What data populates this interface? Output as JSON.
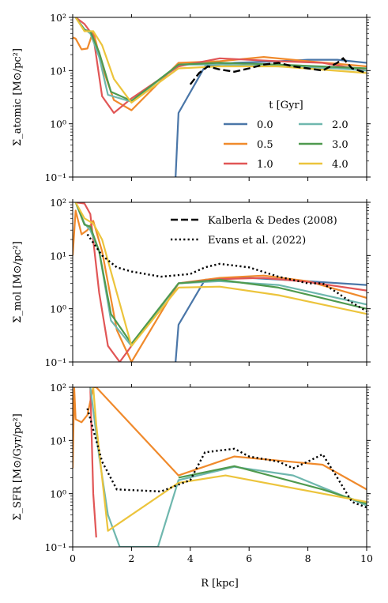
{
  "chart_data": [
    {
      "type": "line",
      "id": "atomic",
      "ylabel": "Σ_atomic [M⊙/pc²]",
      "xlabel": "",
      "xlim": [
        0,
        10
      ],
      "ylim": [
        0.1,
        100
      ],
      "yscale": "log",
      "xticks": [
        "0",
        "2",
        "4",
        "6",
        "8",
        "10"
      ],
      "yticks": [
        "10⁻¹",
        "10⁰",
        "10¹",
        "10²"
      ],
      "legend": {
        "title": "t [Gyr]",
        "placement": "center-right",
        "columns": 2
      },
      "series": [
        {
          "name": "0.0",
          "color": "#4a76a8",
          "x": [
            3.5,
            3.6,
            4.5,
            5.5,
            7.0,
            8.0,
            9.0,
            10.0
          ],
          "y": [
            0.1,
            1.6,
            12,
            14,
            15,
            16,
            16,
            14
          ]
        },
        {
          "name": "0.5",
          "color": "#f08a2c",
          "x": [
            0,
            0.1,
            0.3,
            0.5,
            0.7,
            1.0,
            1.4,
            2.0,
            3.6,
            5.0,
            6.5,
            8.0,
            10.0
          ],
          "y": [
            42,
            40,
            25,
            26,
            55,
            12,
            2.8,
            1.8,
            14,
            15,
            18,
            15,
            12
          ]
        },
        {
          "name": "1.0",
          "color": "#e15656",
          "x": [
            0.1,
            0.4,
            0.7,
            1.0,
            1.4,
            2.0,
            3.6,
            5.0,
            7.0,
            8.5,
            10.0
          ],
          "y": [
            100,
            75,
            45,
            3.3,
            1.6,
            3.0,
            12,
            17,
            15,
            14,
            10
          ]
        },
        {
          "name": "2.0",
          "color": "#6fb7ae",
          "x": [
            0.1,
            0.4,
            0.6,
            0.9,
            1.2,
            2.0,
            3.6,
            5.0,
            7.0,
            9.0,
            10.0
          ],
          "y": [
            100,
            60,
            50,
            18,
            3.5,
            2.6,
            13,
            13,
            12,
            11,
            10
          ]
        },
        {
          "name": "3.0",
          "color": "#4f9a4f",
          "x": [
            0.1,
            0.4,
            0.6,
            0.9,
            1.3,
            2.0,
            3.6,
            5.0,
            7.0,
            10.0
          ],
          "y": [
            100,
            58,
            55,
            22,
            4.0,
            2.7,
            13,
            14,
            13,
            11
          ]
        },
        {
          "name": "4.0",
          "color": "#ecc43c",
          "x": [
            0.1,
            0.4,
            0.7,
            1.0,
            1.4,
            2.0,
            3.6,
            5.0,
            7.0,
            10.0
          ],
          "y": [
            100,
            55,
            55,
            30,
            7.0,
            2.5,
            11,
            12,
            12,
            9
          ]
        }
      ],
      "observations": [
        {
          "name": "Kalberla & Dedes (2008)",
          "style": "dashed",
          "x": [
            4.0,
            4.3,
            4.6,
            5.0,
            5.5,
            6.0,
            6.5,
            7.0,
            7.5,
            8.0,
            8.5,
            9.0,
            9.2,
            9.5,
            10.0
          ],
          "y": [
            5.5,
            9,
            12,
            10.5,
            9.5,
            11,
            13,
            14,
            12,
            11,
            10,
            14,
            17,
            11,
            9
          ]
        }
      ]
    },
    {
      "type": "line",
      "id": "mol",
      "ylabel": "Σ_mol [M⊙/pc²]",
      "xlabel": "",
      "xlim": [
        0,
        10
      ],
      "ylim": [
        0.1,
        100
      ],
      "yscale": "log",
      "xticks": [
        "0",
        "2",
        "4",
        "6",
        "8",
        "10"
      ],
      "yticks": [
        "10⁻¹",
        "10⁰",
        "10¹",
        "10²"
      ],
      "legend": {
        "placement": "top-right",
        "entries": [
          "Kalberla & Dedes (2008)",
          "Evans et al. (2022)"
        ]
      },
      "series": [
        {
          "name": "0.0",
          "color": "#4a76a8",
          "x": [
            3.5,
            3.6,
            4.5,
            6.0,
            8.0,
            10.0
          ],
          "y": [
            0.1,
            0.5,
            3.5,
            3.8,
            3.3,
            2.8
          ]
        },
        {
          "name": "0.5",
          "color": "#f08a2c",
          "x": [
            0,
            0.1,
            0.3,
            0.5,
            0.7,
            1.0,
            1.5,
            2.0,
            3.6,
            5.0,
            6.5,
            8.0,
            10.0
          ],
          "y": [
            10,
            70,
            25,
            30,
            45,
            12,
            0.4,
            0.1,
            3.0,
            3.8,
            4.2,
            3.3,
            1.6
          ]
        },
        {
          "name": "1.0",
          "color": "#e15656",
          "x": [
            0.1,
            0.4,
            0.6,
            0.9,
            1.2,
            1.6,
            2.0,
            3.6,
            5.0,
            6.5,
            8.0,
            10.0
          ],
          "y": [
            100,
            95,
            60,
            2.0,
            0.2,
            0.1,
            0.2,
            3.0,
            3.6,
            3.8,
            3.2,
            2.2
          ]
        },
        {
          "name": "2.0",
          "color": "#6fb7ae",
          "x": [
            0.1,
            0.4,
            0.6,
            0.9,
            1.3,
            2.0,
            3.6,
            5.0,
            7.0,
            10.0
          ],
          "y": [
            100,
            40,
            30,
            12,
            0.6,
            0.2,
            3.0,
            3.3,
            2.8,
            1.2
          ]
        },
        {
          "name": "3.0",
          "color": "#4f9a4f",
          "x": [
            0.1,
            0.4,
            0.6,
            0.9,
            1.3,
            2.0,
            3.6,
            5.0,
            7.0,
            10.0
          ],
          "y": [
            100,
            38,
            35,
            12,
            0.8,
            0.22,
            3.0,
            3.5,
            2.5,
            1.0
          ]
        },
        {
          "name": "4.0",
          "color": "#ecc43c",
          "x": [
            0.1,
            0.4,
            0.7,
            1.0,
            1.5,
            2.0,
            3.6,
            5.0,
            7.0,
            10.0
          ],
          "y": [
            100,
            50,
            40,
            20,
            2.0,
            0.2,
            2.5,
            2.6,
            1.8,
            0.8
          ]
        }
      ],
      "observations": [
        {
          "name": "Evans et al. (2022)",
          "style": "dotted",
          "x": [
            0.5,
            1.0,
            1.5,
            2.0,
            3.0,
            4.0,
            4.5,
            5.0,
            6.0,
            7.0,
            8.0,
            8.5,
            9.0,
            9.5,
            10.0
          ],
          "y": [
            25,
            10,
            6,
            5,
            4,
            4.5,
            6,
            7,
            6,
            4,
            3,
            3,
            2,
            1.3,
            0.9
          ]
        }
      ]
    },
    {
      "type": "line",
      "id": "sfr",
      "ylabel": "Σ_SFR [M⊙/Gyr/pc²]",
      "xlabel": "R [kpc]",
      "xlim": [
        0,
        10
      ],
      "ylim": [
        0.1,
        100
      ],
      "yscale": "log",
      "xticks": [
        "0",
        "2",
        "4",
        "6",
        "8",
        "10"
      ],
      "yticks": [
        "10⁻¹",
        "10⁰",
        "10¹",
        "10²"
      ],
      "series": [
        {
          "name": "0.5",
          "color": "#f08a2c",
          "x": [
            0,
            0.05,
            0.1,
            0.3,
            0.5,
            0.7,
            0.8,
            3.6,
            5.5,
            8.5,
            10.0
          ],
          "y": [
            3,
            100,
            25,
            22,
            30,
            100,
            100,
            2.2,
            5.0,
            3.5,
            1.2
          ]
        },
        {
          "name": "1.0",
          "color": "#e15656",
          "x": [
            0.6,
            0.7,
            0.8
          ],
          "y": [
            100,
            1.0,
            0.15
          ]
        },
        {
          "name": "2.0",
          "color": "#6fb7ae",
          "x": [
            0.6,
            0.9,
            1.2,
            1.6,
            2.9,
            3.6,
            5.5,
            7.5,
            10.0
          ],
          "y": [
            100,
            5.0,
            0.4,
            0.1,
            0.1,
            1.8,
            3.2,
            2.2,
            0.6
          ]
        },
        {
          "name": "3.0",
          "color": "#4f9a4f",
          "x": [
            3.6,
            5.5,
            8.5,
            10.0
          ],
          "y": [
            2.0,
            3.3,
            1.2,
            0.65
          ]
        },
        {
          "name": "4.0",
          "color": "#ecc43c",
          "x": [
            0.7,
            0.8,
            1.2,
            3.6,
            5.2,
            10.0
          ],
          "y": [
            100,
            20,
            0.2,
            1.6,
            2.2,
            0.7
          ]
        }
      ],
      "observations": [
        {
          "name": "Evans et al. (2022)",
          "style": "dotted",
          "x": [
            0.5,
            0.8,
            1.0,
            1.5,
            3.0,
            4.0,
            4.5,
            5.5,
            6.0,
            7.0,
            7.5,
            8.0,
            8.5,
            9.0,
            9.5,
            10.0
          ],
          "y": [
            40,
            10,
            4,
            1.2,
            1.1,
            1.8,
            6,
            7,
            5,
            4,
            3,
            4,
            5.5,
            2.0,
            0.7,
            0.55
          ]
        }
      ]
    }
  ]
}
